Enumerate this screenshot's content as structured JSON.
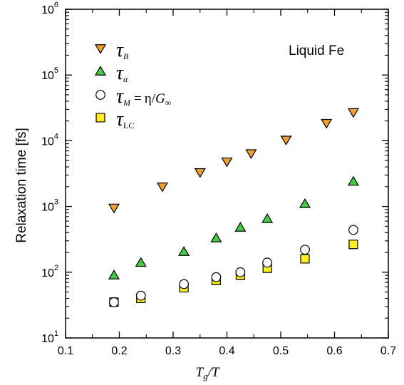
{
  "chart_data": {
    "type": "scatter",
    "xlabel": {
      "main": "T",
      "sub": "g",
      "rest": "/T"
    },
    "ylabel": "Relaxation time [fs]",
    "xlim": [
      0.1,
      0.7
    ],
    "ylim": [
      10,
      1000000
    ],
    "yscale": "log",
    "x_ticks": [
      "0.1",
      "0.2",
      "0.3",
      "0.4",
      "0.5",
      "0.6",
      "0.7"
    ],
    "y_ticks": [
      {
        "base": "10",
        "exp": "1"
      },
      {
        "base": "10",
        "exp": "2"
      },
      {
        "base": "10",
        "exp": "3"
      },
      {
        "base": "10",
        "exp": "4"
      },
      {
        "base": "10",
        "exp": "5"
      },
      {
        "base": "10",
        "exp": "6"
      }
    ],
    "annotation": "Liquid Fe",
    "legend_position": "top-left",
    "grid": false,
    "series": [
      {
        "name": "τB",
        "legend": {
          "symbol": "τ",
          "sub": "B"
        },
        "marker": "triangle-down",
        "color": "#F0A030",
        "points": [
          [
            0.19,
            950
          ],
          [
            0.28,
            2000
          ],
          [
            0.35,
            3300
          ],
          [
            0.4,
            4800
          ],
          [
            0.445,
            6400
          ],
          [
            0.51,
            10300
          ],
          [
            0.585,
            18500
          ],
          [
            0.635,
            27000
          ]
        ]
      },
      {
        "name": "τα",
        "legend": {
          "symbol": "τ",
          "sub": "α"
        },
        "marker": "triangle-up",
        "color": "#44CC44",
        "points": [
          [
            0.19,
            90
          ],
          [
            0.24,
            140
          ],
          [
            0.32,
            205
          ],
          [
            0.38,
            330
          ],
          [
            0.425,
            480
          ],
          [
            0.475,
            650
          ],
          [
            0.545,
            1100
          ],
          [
            0.635,
            2400
          ]
        ]
      },
      {
        "name": "τM = η/G∞",
        "legend": {
          "symbol": "τ",
          "sub": "M",
          "eq_sign": "=",
          "eta": "η",
          "slash": "/",
          "g": "G",
          "g_sub": "∞"
        },
        "marker": "circle",
        "color": "#FFFFFF",
        "points": [
          [
            0.19,
            35
          ],
          [
            0.24,
            44
          ],
          [
            0.32,
            66
          ],
          [
            0.38,
            84
          ],
          [
            0.425,
            100
          ],
          [
            0.475,
            140
          ],
          [
            0.545,
            220
          ],
          [
            0.635,
            440
          ]
        ]
      },
      {
        "name": "τLC",
        "legend": {
          "symbol": "τ",
          "sub": "LC"
        },
        "marker": "square",
        "color": "#FFEE22",
        "points": [
          [
            0.19,
            35
          ],
          [
            0.24,
            40
          ],
          [
            0.32,
            58
          ],
          [
            0.38,
            75
          ],
          [
            0.425,
            90
          ],
          [
            0.475,
            115
          ],
          [
            0.545,
            160
          ],
          [
            0.635,
            265
          ]
        ]
      }
    ]
  }
}
